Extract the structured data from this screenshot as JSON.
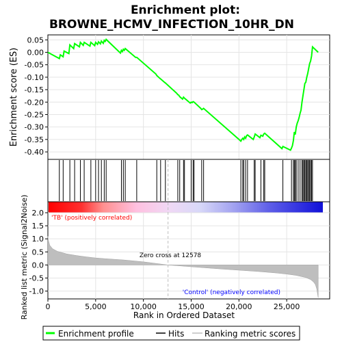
{
  "title_line1": "Enrichment plot:",
  "title_line2": "BROWNE_HCMV_INFECTION_10HR_DN",
  "top_ylabel": "Enrichment score (ES)",
  "bottom_ylabel": "Ranked list metric (Signal2Noise)",
  "xlabel": "Rank in Ordered Dataset",
  "pos_label": "'TB' (positively correlated)",
  "neg_label": "'Control' (negatively correlated)",
  "zero_cross_label": "Zero cross at 12578",
  "legend": {
    "enrichment": "Enrichment profile",
    "hits": "Hits",
    "ranking": "Ranking metric scores"
  },
  "colors": {
    "enrichment_line": "#00ff00",
    "hits": "#000000",
    "ranking_fill": "#bebebe",
    "pos_text": "#ff0000",
    "neg_text": "#0000ff",
    "zero_cross_line": "#bebebe"
  },
  "chart_data": {
    "type": "line",
    "x_range": [
      0,
      29500
    ],
    "n_genes": 28300,
    "zero_cross": 12578,
    "es_ylim": [
      -0.43,
      0.07
    ],
    "es_yticks": [
      0.05,
      0.0,
      -0.05,
      -0.1,
      -0.15,
      -0.2,
      -0.25,
      -0.3,
      -0.35,
      -0.4
    ],
    "es_ytick_labels": [
      "0.05",
      "0.00",
      "-0.05",
      "-0.10",
      "-0.15",
      "-0.20",
      "-0.25",
      "-0.30",
      "-0.35",
      "-0.40"
    ],
    "metric_ylim": [
      -1.3,
      2.0
    ],
    "metric_yticks": [
      2.0,
      1.5,
      1.0,
      0.5,
      0.0,
      -0.5,
      -1.0
    ],
    "metric_ytick_labels": [
      "2.0",
      "1.5",
      "1.0",
      "0.5",
      "0.0",
      "-0.5",
      "-1.0"
    ],
    "xticks": [
      0,
      5000,
      10000,
      15000,
      20000,
      25000
    ],
    "xtick_labels": [
      "0",
      "5,000",
      "10,000",
      "15,000",
      "20,000",
      "25,000"
    ],
    "hits": [
      1200,
      1600,
      2300,
      2800,
      3400,
      3800,
      4500,
      5000,
      5300,
      5600,
      5900,
      6100,
      7700,
      7900,
      8100,
      9300,
      11400,
      11800,
      12300,
      13600,
      13800,
      14200,
      14300,
      15000,
      15200,
      15300,
      16100,
      16300,
      20200,
      20400,
      20500,
      20700,
      20900,
      21600,
      21700,
      22300,
      22600,
      22700,
      24600,
      25500,
      25700,
      25800,
      25900,
      26000,
      26200,
      26400,
      26600,
      26700,
      26800,
      26900,
      27000,
      27100,
      27200,
      27300,
      27400,
      27500,
      27600,
      27700
    ],
    "es_profile": {
      "name": "Enrichment profile",
      "x": [
        0,
        1200,
        1300,
        1600,
        1700,
        2200,
        2300,
        2700,
        2800,
        3300,
        3400,
        3700,
        3800,
        4400,
        4500,
        4900,
        5000,
        5200,
        5300,
        5500,
        5600,
        5800,
        5900,
        6000,
        6100,
        7600,
        7700,
        7800,
        7900,
        8000,
        8100,
        9200,
        9300,
        11300,
        11400,
        11700,
        11800,
        12200,
        12300,
        13500,
        13600,
        13700,
        13800,
        14100,
        14200,
        14300,
        14900,
        15000,
        15100,
        15200,
        15300,
        16000,
        16100,
        16200,
        16300,
        20100,
        20200,
        20300,
        20400,
        20500,
        20600,
        20700,
        20800,
        20900,
        21500,
        21600,
        21700,
        22200,
        22300,
        22500,
        22600,
        22700,
        24500,
        24600,
        25400,
        25500,
        25600,
        25700,
        25800,
        25900,
        26000,
        26100,
        26200,
        26300,
        26400,
        26500,
        26600,
        26700,
        26800,
        26900,
        27000,
        27100,
        27200,
        27300,
        27400,
        27500,
        27600,
        27700,
        28300
      ],
      "y": [
        0.0,
        -0.025,
        -0.01,
        -0.018,
        0.005,
        -0.005,
        0.03,
        0.015,
        0.035,
        0.022,
        0.04,
        0.028,
        0.04,
        0.025,
        0.04,
        0.027,
        0.04,
        0.032,
        0.042,
        0.034,
        0.045,
        0.036,
        0.048,
        0.044,
        0.052,
        -0.003,
        0.008,
        0.003,
        0.012,
        0.008,
        0.015,
        -0.021,
        -0.02,
        -0.087,
        -0.093,
        -0.104,
        -0.107,
        -0.12,
        -0.123,
        -0.165,
        -0.17,
        -0.172,
        -0.178,
        -0.188,
        -0.18,
        -0.184,
        -0.204,
        -0.2,
        -0.202,
        -0.198,
        -0.2,
        -0.225,
        -0.23,
        -0.228,
        -0.225,
        -0.353,
        -0.357,
        -0.35,
        -0.345,
        -0.35,
        -0.34,
        -0.345,
        -0.335,
        -0.332,
        -0.35,
        -0.34,
        -0.328,
        -0.343,
        -0.333,
        -0.337,
        -0.328,
        -0.325,
        -0.387,
        -0.378,
        -0.393,
        -0.385,
        -0.375,
        -0.355,
        -0.32,
        -0.33,
        -0.3,
        -0.285,
        -0.275,
        -0.262,
        -0.245,
        -0.232,
        -0.2,
        -0.175,
        -0.15,
        -0.125,
        -0.12,
        -0.1,
        -0.085,
        -0.065,
        -0.045,
        -0.035,
        -0.015,
        0.022,
        0.0
      ]
    },
    "metric": {
      "name": "Ranking metric scores",
      "x": [
        0,
        50,
        200,
        500,
        1000,
        2000,
        3000,
        4000,
        5000,
        6000,
        8000,
        10000,
        12578,
        15000,
        18000,
        20000,
        22000,
        24000,
        25000,
        26000,
        26500,
        27000,
        27500,
        27800,
        28000,
        28150,
        28250,
        28300
      ],
      "y": [
        1.1,
        0.95,
        0.75,
        0.62,
        0.52,
        0.42,
        0.36,
        0.31,
        0.27,
        0.24,
        0.19,
        0.12,
        0.0,
        -0.07,
        -0.15,
        -0.2,
        -0.25,
        -0.31,
        -0.35,
        -0.4,
        -0.44,
        -0.48,
        -0.56,
        -0.65,
        -0.75,
        -0.92,
        -1.15,
        -1.25
      ]
    }
  }
}
